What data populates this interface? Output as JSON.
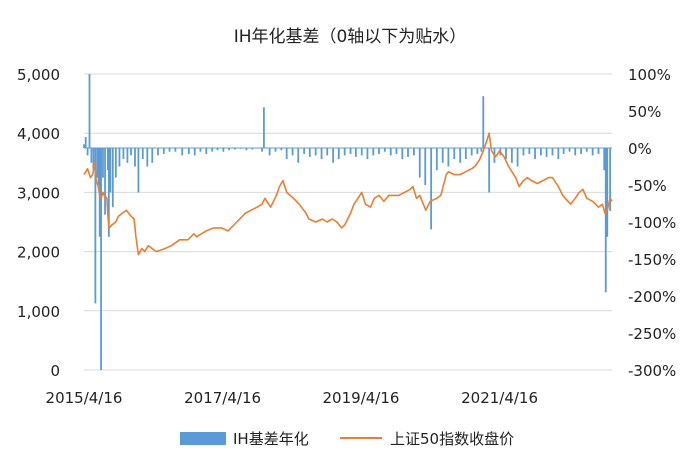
{
  "chart_data": {
    "type": "bar+line",
    "title": "IH年化基差（0轴以下为贴水）",
    "x_tick_labels": [
      "2015/4/16",
      "2017/4/16",
      "2019/4/16",
      "2021/4/16"
    ],
    "x_range": [
      "2015-04-16",
      "2022-11-30"
    ],
    "left_axis": {
      "ylim": [
        0,
        5000
      ],
      "tick_labels": [
        "0",
        "1,000",
        "2,000",
        "3,000",
        "4,000",
        "5,000"
      ]
    },
    "right_axis": {
      "ylim": [
        -300,
        100
      ],
      "tick_labels": [
        "100%",
        "50%",
        "0%",
        "-50%",
        "-100%",
        "-150%",
        "-200%",
        "-250%",
        "-300%"
      ]
    },
    "grid": "horizontal",
    "legend_position": "bottom",
    "colors": {
      "basis": "#5B9BD5",
      "index": "#ED7D31",
      "grid": "#D9D9D9"
    },
    "series": [
      {
        "name": "IH基差年化",
        "axis": "right",
        "style": "bar",
        "unit": "%",
        "x": [
          "2015-04-16",
          "2015-04-25",
          "2015-05-05",
          "2015-05-15",
          "2015-05-25",
          "2015-06-05",
          "2015-06-15",
          "2015-06-25",
          "2015-07-02",
          "2015-07-08",
          "2015-07-15",
          "2015-07-25",
          "2015-08-05",
          "2015-08-20",
          "2015-08-25",
          "2015-09-02",
          "2015-09-15",
          "2015-10-01",
          "2015-10-20",
          "2015-11-10",
          "2015-12-01",
          "2015-12-20",
          "2016-01-10",
          "2016-01-28",
          "2016-02-20",
          "2016-03-15",
          "2016-04-10",
          "2016-05-10",
          "2016-06-10",
          "2016-07-10",
          "2016-08-10",
          "2016-09-15",
          "2016-10-20",
          "2016-11-20",
          "2016-12-20",
          "2017-01-20",
          "2017-02-20",
          "2017-03-20",
          "2017-04-20",
          "2017-05-20",
          "2017-06-20",
          "2017-07-20",
          "2017-08-20",
          "2017-09-20",
          "2017-10-20",
          "2017-11-10",
          "2017-11-20",
          "2017-12-20",
          "2018-01-20",
          "2018-02-20",
          "2018-03-20",
          "2018-04-20",
          "2018-05-20",
          "2018-06-20",
          "2018-07-20",
          "2018-08-20",
          "2018-09-20",
          "2018-10-20",
          "2018-11-20",
          "2018-12-20",
          "2019-01-20",
          "2019-02-20",
          "2019-03-20",
          "2019-04-20",
          "2019-05-20",
          "2019-06-20",
          "2019-07-20",
          "2019-08-20",
          "2019-09-20",
          "2019-10-20",
          "2019-11-20",
          "2019-12-20",
          "2020-01-20",
          "2020-02-20",
          "2020-03-20",
          "2020-04-20",
          "2020-05-20",
          "2020-06-20",
          "2020-07-20",
          "2020-08-20",
          "2020-09-20",
          "2020-10-20",
          "2020-11-20",
          "2020-12-20",
          "2021-01-10",
          "2021-01-20",
          "2021-02-20",
          "2021-03-20",
          "2021-04-20",
          "2021-05-20",
          "2021-06-20",
          "2021-07-20",
          "2021-08-20",
          "2021-09-20",
          "2021-10-20",
          "2021-11-20",
          "2021-12-20",
          "2022-01-20",
          "2022-02-20",
          "2022-03-20",
          "2022-04-20",
          "2022-05-20",
          "2022-06-20",
          "2022-07-20",
          "2022-08-20",
          "2022-09-20",
          "2022-10-20",
          "2022-10-28",
          "2022-11-05",
          "2022-11-20"
        ],
        "values": [
          5,
          15,
          -10,
          100,
          -20,
          -30,
          -210,
          -40,
          -50,
          -120,
          -300,
          -40,
          -90,
          -30,
          -120,
          -60,
          -80,
          -40,
          -25,
          -15,
          -20,
          -10,
          -25,
          -60,
          -15,
          -25,
          -20,
          -10,
          -8,
          -5,
          -5,
          -10,
          -8,
          -10,
          -5,
          -8,
          -5,
          -3,
          -5,
          -3,
          -2,
          -1,
          -3,
          -2,
          0,
          -5,
          55,
          -10,
          -5,
          -3,
          -15,
          -10,
          -20,
          -8,
          -12,
          -10,
          -15,
          -10,
          -20,
          -15,
          -10,
          -8,
          -12,
          -10,
          -15,
          -10,
          -8,
          -5,
          -10,
          -8,
          -15,
          -12,
          -10,
          -40,
          -50,
          -110,
          -30,
          -20,
          -25,
          -15,
          -20,
          -15,
          -10,
          -8,
          -5,
          70,
          -60,
          -20,
          -10,
          -15,
          -20,
          -25,
          -10,
          -8,
          -15,
          -10,
          -12,
          -10,
          -15,
          -8,
          -5,
          -10,
          -8,
          -5,
          -10,
          -8,
          -30,
          -195,
          -120,
          -85
        ]
      },
      {
        "name": "上证50指数收盘价",
        "axis": "left",
        "style": "line",
        "x": [
          "2015-04-16",
          "2015-05-05",
          "2015-05-20",
          "2015-06-01",
          "2015-06-12",
          "2015-06-20",
          "2015-06-30",
          "2015-07-08",
          "2015-07-15",
          "2015-07-25",
          "2015-08-01",
          "2015-08-15",
          "2015-08-20",
          "2015-08-26",
          "2015-09-10",
          "2015-09-30",
          "2015-10-15",
          "2015-11-05",
          "2015-11-25",
          "2015-12-20",
          "2016-01-05",
          "2016-01-15",
          "2016-01-28",
          "2016-02-15",
          "2016-03-01",
          "2016-03-20",
          "2016-05-01",
          "2016-06-15",
          "2016-07-20",
          "2016-09-01",
          "2016-10-15",
          "2016-11-15",
          "2016-12-01",
          "2016-12-25",
          "2017-01-20",
          "2017-03-01",
          "2017-04-10",
          "2017-05-15",
          "2017-06-30",
          "2017-08-15",
          "2017-10-15",
          "2017-11-10",
          "2017-11-25",
          "2017-12-25",
          "2018-01-25",
          "2018-02-10",
          "2018-02-28",
          "2018-03-20",
          "2018-04-25",
          "2018-05-25",
          "2018-06-30",
          "2018-07-15",
          "2018-08-20",
          "2018-09-25",
          "2018-10-19",
          "2018-11-15",
          "2018-12-10",
          "2019-01-04",
          "2019-01-20",
          "2019-02-20",
          "2019-03-10",
          "2019-04-10",
          "2019-04-20",
          "2019-05-10",
          "2019-06-05",
          "2019-06-25",
          "2019-07-20",
          "2019-08-15",
          "2019-09-10",
          "2019-09-30",
          "2019-11-01",
          "2019-12-01",
          "2019-12-31",
          "2020-01-15",
          "2020-02-03",
          "2020-02-20",
          "2020-03-23",
          "2020-04-15",
          "2020-05-20",
          "2020-06-10",
          "2020-07-09",
          "2020-07-20",
          "2020-08-20",
          "2020-09-20",
          "2020-10-20",
          "2020-11-20",
          "2020-12-10",
          "2020-12-31",
          "2021-01-20",
          "2021-02-10",
          "2021-02-20",
          "2021-03-05",
          "2021-03-25",
          "2021-04-16",
          "2021-05-10",
          "2021-06-01",
          "2021-06-20",
          "2021-07-10",
          "2021-07-28",
          "2021-08-20",
          "2021-09-10",
          "2021-10-01",
          "2021-11-01",
          "2021-12-01",
          "2021-12-31",
          "2022-01-20",
          "2022-02-20",
          "2022-03-15",
          "2022-04-26",
          "2022-05-20",
          "2022-06-10",
          "2022-06-30",
          "2022-07-20",
          "2022-08-20",
          "2022-09-20",
          "2022-10-10",
          "2022-10-24",
          "2022-11-05",
          "2022-11-20",
          "2022-11-30"
        ],
        "values": [
          3300,
          3400,
          3250,
          3300,
          3500,
          3200,
          3100,
          2950,
          2900,
          3000,
          2950,
          2900,
          2600,
          2400,
          2450,
          2500,
          2600,
          2650,
          2700,
          2600,
          2550,
          2250,
          1950,
          2050,
          2000,
          2100,
          2000,
          2050,
          2100,
          2200,
          2200,
          2300,
          2250,
          2300,
          2350,
          2400,
          2400,
          2350,
          2500,
          2650,
          2750,
          2800,
          2900,
          2750,
          2950,
          3100,
          3200,
          3000,
          2900,
          2800,
          2650,
          2550,
          2500,
          2550,
          2500,
          2550,
          2500,
          2400,
          2450,
          2650,
          2800,
          2950,
          3000,
          2800,
          2750,
          2900,
          2950,
          2850,
          2950,
          2950,
          2950,
          3000,
          3050,
          3100,
          2900,
          2950,
          2700,
          2850,
          2900,
          2950,
          3300,
          3350,
          3300,
          3300,
          3350,
          3400,
          3450,
          3550,
          3700,
          3900,
          4000,
          3700,
          3600,
          3700,
          3600,
          3450,
          3350,
          3250,
          3100,
          3200,
          3250,
          3200,
          3150,
          3200,
          3250,
          3250,
          3100,
          2950,
          2800,
          2900,
          3000,
          3050,
          2900,
          2850,
          2750,
          2800,
          2650,
          2700,
          2900,
          2850
        ]
      }
    ]
  }
}
